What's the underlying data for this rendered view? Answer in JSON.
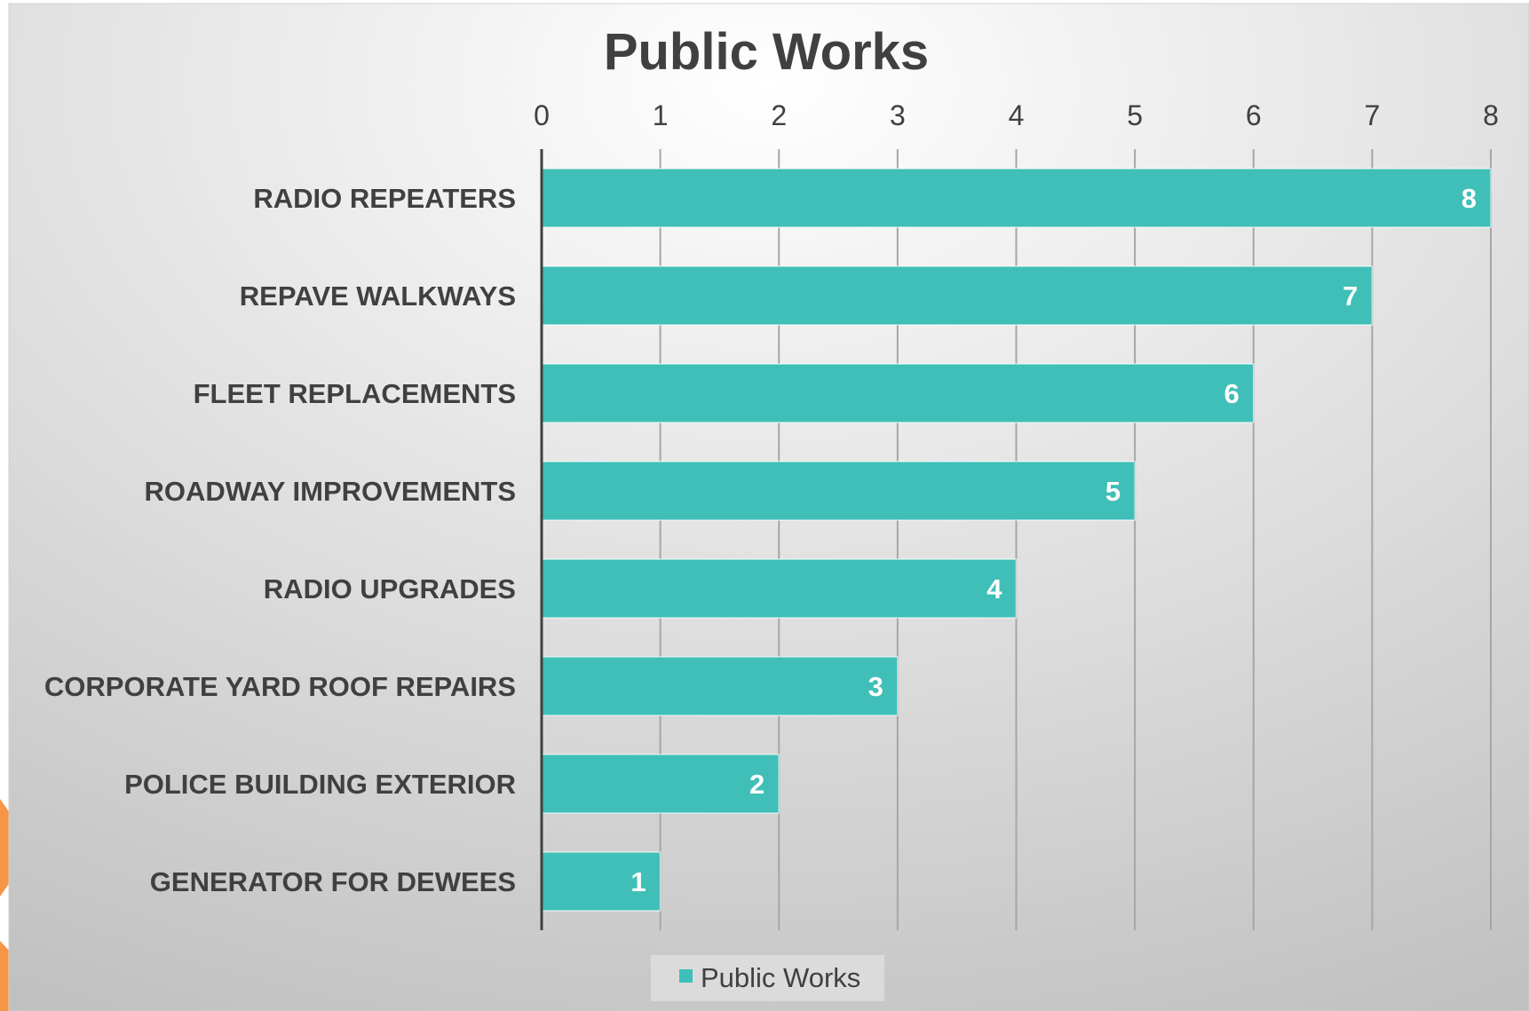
{
  "colors": {
    "bar": "#3FBFB8",
    "text": "#404040",
    "value_label": "#FFFFFF",
    "gridline": "#A6A6A6",
    "axis_line": "#404040",
    "panel_light": "#FFFFFF",
    "panel_dark": "#BFBFBF",
    "accent_orange": "#F79646"
  },
  "chart_data": {
    "type": "bar",
    "orientation": "horizontal",
    "title": "Public Works",
    "xlabel": "",
    "ylabel": "",
    "xlim": [
      0,
      8
    ],
    "x_ticks": [
      "0",
      "1",
      "2",
      "3",
      "4",
      "5",
      "6",
      "7",
      "8"
    ],
    "x_axis_position": "top",
    "grid": true,
    "legend_position": "bottom",
    "categories": [
      "RADIO REPEATERS",
      "REPAVE WALKWAYS",
      "FLEET REPLACEMENTS",
      "ROADWAY IMPROVEMENTS",
      "RADIO UPGRADES",
      "CORPORATE YARD ROOF REPAIRS",
      "POLICE BUILDING EXTERIOR",
      "GENERATOR FOR DEWEES"
    ],
    "series": [
      {
        "name": "Public Works",
        "values": [
          8,
          7,
          6,
          5,
          4,
          3,
          2,
          1
        ],
        "data_labels": [
          "8",
          "7",
          "6",
          "5",
          "4",
          "3",
          "2",
          "1"
        ]
      }
    ]
  }
}
